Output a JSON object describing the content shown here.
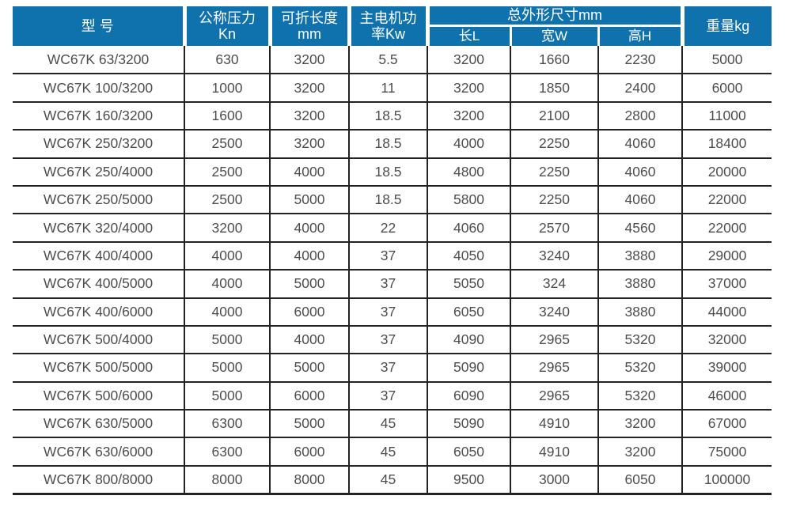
{
  "chart_data": {
    "type": "table",
    "title": "",
    "headers": {
      "model": "型 号",
      "nominal_pressure": [
        "公称压力",
        "Kn"
      ],
      "fold_length": [
        "可折长度",
        "mm"
      ],
      "motor_power": [
        "主电机功",
        "率Kw"
      ],
      "overall_dims_group": "总外形尺寸mm",
      "dim_length": "长L",
      "dim_width": "宽W",
      "dim_height": "高H",
      "weight": "重量kg"
    },
    "rows": [
      [
        "WC67K 63/3200",
        "630",
        "3200",
        "5.5",
        "3200",
        "1660",
        "2230",
        "5000"
      ],
      [
        "WC67K 100/3200",
        "1000",
        "3200",
        "11",
        "3200",
        "1850",
        "2400",
        "6000"
      ],
      [
        "WC67K 160/3200",
        "1600",
        "3200",
        "18.5",
        "3200",
        "2100",
        "2800",
        "11000"
      ],
      [
        "WC67K 250/3200",
        "2500",
        "3200",
        "18.5",
        "4000",
        "2250",
        "4060",
        "18400"
      ],
      [
        "WC67K 250/4000",
        "2500",
        "4000",
        "18.5",
        "4800",
        "2250",
        "4060",
        "20000"
      ],
      [
        "WC67K 250/5000",
        "2500",
        "5000",
        "18.5",
        "5800",
        "2250",
        "4060",
        "22000"
      ],
      [
        "WC67K 320/4000",
        "3200",
        "4000",
        "22",
        "4060",
        "2570",
        "4560",
        "22000"
      ],
      [
        "WC67K 400/4000",
        "4000",
        "4000",
        "37",
        "4050",
        "3240",
        "3880",
        "29000"
      ],
      [
        "WC67K 400/5000",
        "4000",
        "5000",
        "37",
        "5050",
        "324",
        "3880",
        "37000"
      ],
      [
        "WC67K 400/6000",
        "4000",
        "6000",
        "37",
        "6050",
        "3240",
        "3880",
        "44000"
      ],
      [
        "WC67K 500/4000",
        "5000",
        "4000",
        "37",
        "4090",
        "2965",
        "5320",
        "32000"
      ],
      [
        "WC67K 500/5000",
        "5000",
        "5000",
        "37",
        "5090",
        "2965",
        "5320",
        "39000"
      ],
      [
        "WC67K 500/6000",
        "5000",
        "6000",
        "37",
        "6090",
        "2965",
        "5320",
        "46000"
      ],
      [
        "WC67K 630/5000",
        "6300",
        "5000",
        "45",
        "5090",
        "4910",
        "3200",
        "67000"
      ],
      [
        "WC67K 630/6000",
        "6300",
        "6000",
        "45",
        "6050",
        "4910",
        "3200",
        "75000"
      ],
      [
        "WC67K 800/8000",
        "8000",
        "8000",
        "45",
        "9500",
        "3000",
        "6050",
        "100000"
      ]
    ]
  },
  "colors": {
    "header_bg": "#0f72ad",
    "header_text": "#ffffff",
    "body_text": "#4d4d4f",
    "grid_line": "#222222"
  }
}
